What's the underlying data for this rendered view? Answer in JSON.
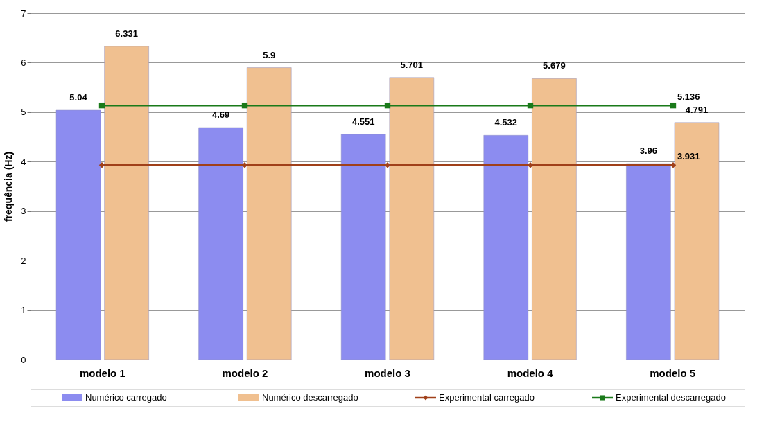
{
  "chart_data": {
    "type": "bar",
    "ylabel": "frequência (Hz)",
    "categories": [
      "modelo 1",
      "modelo 2",
      "modelo 3",
      "modelo 4",
      "modelo 5"
    ],
    "series": [
      {
        "name": "Numérico carregado",
        "color": "#8c8cf0",
        "values": [
          5.04,
          4.69,
          4.551,
          4.532,
          3.96
        ],
        "value_labels": [
          "5.04",
          "4.69",
          "4.551",
          "4.532",
          "3.96"
        ]
      },
      {
        "name": "Numérico descarregado",
        "color": "#f0c090",
        "values": [
          6.331,
          5.9,
          5.701,
          5.679,
          4.791
        ],
        "value_labels": [
          "6.331",
          "5.9",
          "5.701",
          "5.679",
          "4.791"
        ]
      },
      {
        "name": "Experimental carregado",
        "type": "line",
        "color": "#a0401a",
        "marker": "diamond",
        "values": [
          3.931,
          3.931,
          3.931,
          3.931,
          3.931
        ],
        "value_labels": [
          null,
          null,
          null,
          null,
          "3.931"
        ]
      },
      {
        "name": "Experimental descarregado",
        "type": "line",
        "color": "#1a7a1a",
        "marker": "square",
        "values": [
          5.136,
          5.136,
          5.136,
          5.136,
          5.136
        ],
        "value_labels": [
          null,
          null,
          null,
          null,
          "5.136"
        ]
      }
    ],
    "ylim": [
      0,
      7
    ],
    "yticks": [
      0,
      1,
      2,
      3,
      4,
      5,
      6,
      7
    ],
    "grid": "y",
    "legend": "bottom"
  }
}
